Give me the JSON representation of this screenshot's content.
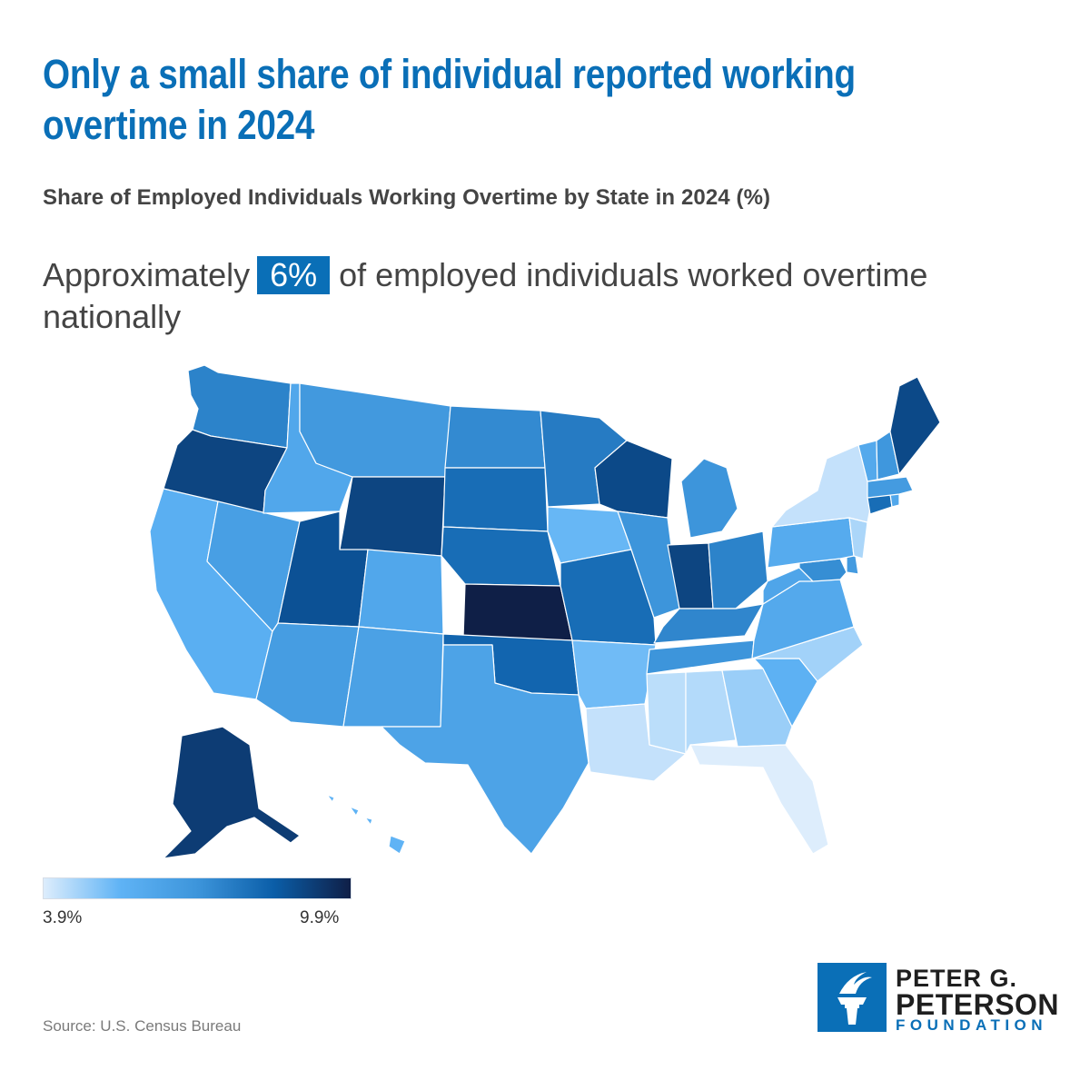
{
  "title": "Only a small share of individual reported working overtime in 2024",
  "subtitle": "Share of Employed Individuals Working Overtime by State in 2024 (%)",
  "callout": {
    "prefix": "Approximately",
    "highlight": "6%",
    "suffix": "of employed individuals worked overtime nationally"
  },
  "legend": {
    "min_label": "3.9%",
    "max_label": "9.9%"
  },
  "source": "Source: U.S. Census Bureau",
  "logo": {
    "line1": "PETER G.",
    "line2": "PETERSON",
    "line3": "FOUNDATION"
  },
  "colors": {
    "accent": "#0a6fb7",
    "scale": [
      "#ddedfc",
      "#5fb3f5",
      "#3d95db",
      "#0b5ea8",
      "#0f1f47"
    ],
    "state_border": "#ffffff"
  },
  "chart_data": {
    "type": "choropleth",
    "title": "Share of Employed Individuals Working Overtime by State in 2024 (%)",
    "unit": "%",
    "range": [
      3.9,
      9.9
    ],
    "national_average": 6,
    "states": [
      {
        "code": "WA",
        "value": 7.4
      },
      {
        "code": "OR",
        "value": 9.0
      },
      {
        "code": "CA",
        "value": 5.6
      },
      {
        "code": "NV",
        "value": 6.4
      },
      {
        "code": "ID",
        "value": 6.0
      },
      {
        "code": "MT",
        "value": 6.7
      },
      {
        "code": "WY",
        "value": 9.0
      },
      {
        "code": "UT",
        "value": 8.7
      },
      {
        "code": "AZ",
        "value": 6.5
      },
      {
        "code": "CO",
        "value": 6.0
      },
      {
        "code": "NM",
        "value": 6.3
      },
      {
        "code": "ND",
        "value": 7.2
      },
      {
        "code": "SD",
        "value": 8.0
      },
      {
        "code": "NE",
        "value": 8.0
      },
      {
        "code": "KS",
        "value": 9.9
      },
      {
        "code": "OK",
        "value": 8.2
      },
      {
        "code": "TX",
        "value": 6.2
      },
      {
        "code": "MN",
        "value": 7.6
      },
      {
        "code": "IA",
        "value": 5.3
      },
      {
        "code": "MO",
        "value": 8.0
      },
      {
        "code": "AR",
        "value": 5.2
      },
      {
        "code": "LA",
        "value": 4.2
      },
      {
        "code": "WI",
        "value": 8.9
      },
      {
        "code": "IL",
        "value": 6.9
      },
      {
        "code": "MI",
        "value": 6.9
      },
      {
        "code": "IN",
        "value": 9.0
      },
      {
        "code": "OH",
        "value": 7.4
      },
      {
        "code": "KY",
        "value": 7.3
      },
      {
        "code": "TN",
        "value": 6.9
      },
      {
        "code": "MS",
        "value": 4.3
      },
      {
        "code": "AL",
        "value": 4.4
      },
      {
        "code": "GA",
        "value": 4.7
      },
      {
        "code": "FL",
        "value": 3.9
      },
      {
        "code": "SC",
        "value": 5.5
      },
      {
        "code": "NC",
        "value": 4.6
      },
      {
        "code": "VA",
        "value": 5.9
      },
      {
        "code": "WV",
        "value": 6.1
      },
      {
        "code": "MD",
        "value": 7.1
      },
      {
        "code": "DE",
        "value": 6.6
      },
      {
        "code": "PA",
        "value": 5.8
      },
      {
        "code": "NJ",
        "value": 4.5
      },
      {
        "code": "NY",
        "value": 4.2
      },
      {
        "code": "CT",
        "value": 8.0
      },
      {
        "code": "RI",
        "value": 6.0
      },
      {
        "code": "MA",
        "value": 6.6
      },
      {
        "code": "VT",
        "value": 5.9
      },
      {
        "code": "NH",
        "value": 6.8
      },
      {
        "code": "ME",
        "value": 8.9
      },
      {
        "code": "AK",
        "value": 9.2
      },
      {
        "code": "HI",
        "value": 5.4
      }
    ]
  }
}
